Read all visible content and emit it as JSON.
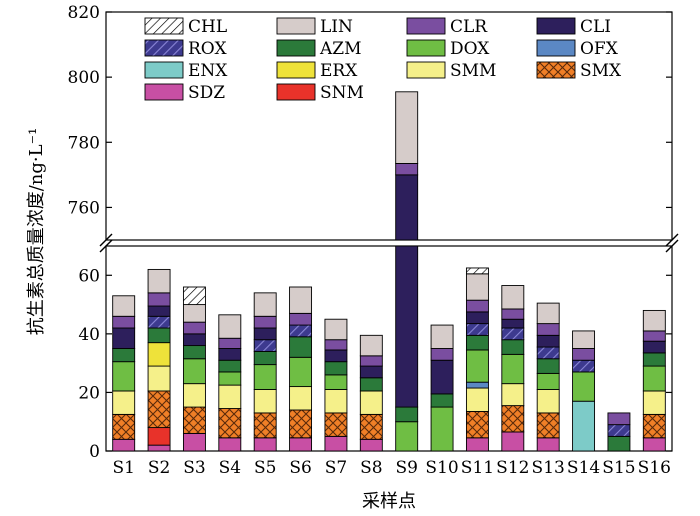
{
  "chart_data": {
    "type": "bar",
    "stacked": true,
    "broken_y_axis": true,
    "title": "",
    "xlabel": "采样点",
    "ylabel": "抗生素总质量浓度/ng·L⁻¹",
    "ylim_lower": [
      0,
      70
    ],
    "ylim_upper": [
      750,
      820
    ],
    "yticks_lower": [
      "0",
      "20",
      "40",
      "60"
    ],
    "yticks_upper": [
      "760",
      "780",
      "800",
      "820"
    ],
    "legend_position": "top",
    "categories": [
      "S1",
      "S2",
      "S3",
      "S4",
      "S5",
      "S6",
      "S7",
      "S8",
      "S9",
      "S10",
      "S11",
      "S12",
      "S13",
      "S14",
      "S15",
      "S16"
    ],
    "series": [
      {
        "name": "SDZ",
        "color": "#c84fa4",
        "pattern": "solid",
        "values": [
          4,
          2,
          6,
          4.5,
          4.5,
          4.5,
          5,
          4,
          0,
          0,
          4.5,
          6.5,
          4.5,
          0,
          0,
          4.5
        ]
      },
      {
        "name": "SNM",
        "color": "#e8322a",
        "pattern": "solid",
        "values": [
          0,
          6,
          0,
          0,
          0,
          0,
          0,
          0,
          0,
          0,
          0,
          0,
          0,
          0,
          0,
          0
        ]
      },
      {
        "name": "SMX",
        "color": "#f07f27",
        "pattern": "cross",
        "values": [
          8.5,
          12.5,
          9,
          10,
          8.5,
          9.5,
          8,
          8.5,
          0,
          0,
          9,
          9,
          8.5,
          0,
          0,
          8
        ]
      },
      {
        "name": "SMM",
        "color": "#f5f08a",
        "pattern": "solid",
        "values": [
          8,
          8.5,
          8,
          8,
          8,
          8,
          8,
          8,
          0,
          0,
          8,
          7.5,
          8,
          0,
          0,
          8
        ]
      },
      {
        "name": "ERX",
        "color": "#eee23a",
        "pattern": "solid",
        "values": [
          0,
          8,
          0,
          0,
          0,
          0,
          0,
          0,
          0,
          0,
          0,
          0,
          0,
          0,
          0,
          0
        ]
      },
      {
        "name": "ENX",
        "color": "#7dcbc8",
        "pattern": "solid",
        "values": [
          0,
          0,
          0,
          0,
          0,
          0,
          0,
          0,
          0,
          0,
          0,
          0,
          0,
          17,
          0,
          0
        ]
      },
      {
        "name": "OFX",
        "color": "#5b88c4",
        "pattern": "solid",
        "values": [
          0,
          0,
          0,
          0,
          0,
          0,
          0,
          0,
          0,
          0,
          2,
          0,
          0,
          0,
          0,
          0
        ]
      },
      {
        "name": "DOX",
        "color": "#6fbe44",
        "pattern": "solid",
        "values": [
          10,
          0,
          8.5,
          4.5,
          8.5,
          10,
          5,
          0,
          10,
          15,
          11,
          10,
          5.5,
          10,
          0,
          8.5
        ]
      },
      {
        "name": "AZM",
        "color": "#2b7a3a",
        "pattern": "solid",
        "values": [
          4.5,
          5,
          4.5,
          4,
          4.5,
          7,
          4.5,
          4.5,
          5,
          4.5,
          5,
          5,
          5,
          0,
          5,
          4.5
        ]
      },
      {
        "name": "ROX",
        "color": "#3d3a8f",
        "pattern": "hatch",
        "values": [
          0,
          4,
          0,
          0,
          4,
          4,
          0,
          0,
          0,
          0,
          4,
          4,
          4,
          4,
          4,
          0
        ]
      },
      {
        "name": "CLI",
        "color": "#2d1f5c",
        "pattern": "solid",
        "values": [
          7,
          3.5,
          4,
          4,
          4,
          0,
          4,
          4,
          755,
          11.5,
          4,
          3,
          4,
          0,
          0,
          4
        ]
      },
      {
        "name": "CLR",
        "color": "#7a4ea0",
        "pattern": "solid",
        "values": [
          4,
          4.5,
          4,
          3.5,
          4,
          4,
          3.5,
          3.5,
          3.5,
          4,
          4,
          3.5,
          4,
          4,
          4,
          3.5
        ]
      },
      {
        "name": "LIN",
        "color": "#d6ccca",
        "pattern": "solid",
        "values": [
          7,
          8,
          6,
          8,
          8,
          9,
          7,
          7,
          22,
          8,
          9,
          8,
          7,
          6,
          0,
          7
        ]
      },
      {
        "name": "CHL",
        "color": "#ffffff",
        "pattern": "hatch",
        "values": [
          0,
          0,
          6,
          0,
          0,
          0,
          0,
          0,
          0,
          0,
          2,
          0,
          0,
          0,
          0,
          0
        ]
      }
    ],
    "legend_order": [
      "CHL",
      "LIN",
      "CLR",
      "CLI",
      "ROX",
      "AZM",
      "DOX",
      "OFX",
      "ENX",
      "ERX",
      "SMM",
      "SMX",
      "SDZ",
      "SNM"
    ]
  }
}
